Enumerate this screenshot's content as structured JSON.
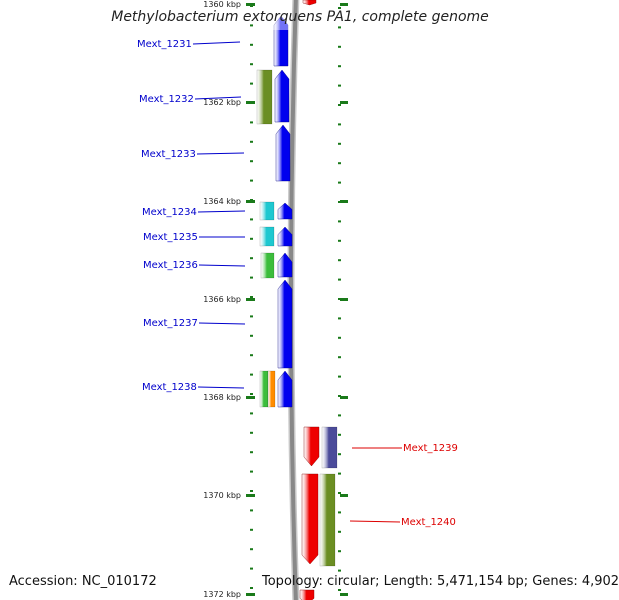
{
  "title": "Methylobacterium extorquens PA1, complete genome",
  "footer": {
    "accession": "Accession: NC_010172",
    "summary": "Topology: circular; Length: 5,471,154 bp; Genes: 4,902"
  },
  "colors": {
    "forward_label": "#0000cc",
    "reverse_label": "#dd0000",
    "backbone": "#888888",
    "tick": "#1a7a1a"
  },
  "scale_labels": [
    "1360 kbp",
    "1362 kbp",
    "1364 kbp",
    "1366 kbp",
    "1368 kbp",
    "1370 kbp",
    "1372 kbp"
  ],
  "genes": [
    {
      "label": "Mext_1231",
      "strand": "forward"
    },
    {
      "label": "Mext_1232",
      "strand": "forward"
    },
    {
      "label": "Mext_1233",
      "strand": "forward"
    },
    {
      "label": "Mext_1234",
      "strand": "forward"
    },
    {
      "label": "Mext_1235",
      "strand": "forward"
    },
    {
      "label": "Mext_1236",
      "strand": "forward"
    },
    {
      "label": "Mext_1237",
      "strand": "forward"
    },
    {
      "label": "Mext_1238",
      "strand": "forward"
    },
    {
      "label": "Mext_1239",
      "strand": "reverse"
    },
    {
      "label": "Mext_1240",
      "strand": "reverse"
    }
  ],
  "category_colors": [
    "#6b8e23",
    "#1ec8d0",
    "#3cbd3c",
    "#ff8c00",
    "#4b4b9a"
  ]
}
